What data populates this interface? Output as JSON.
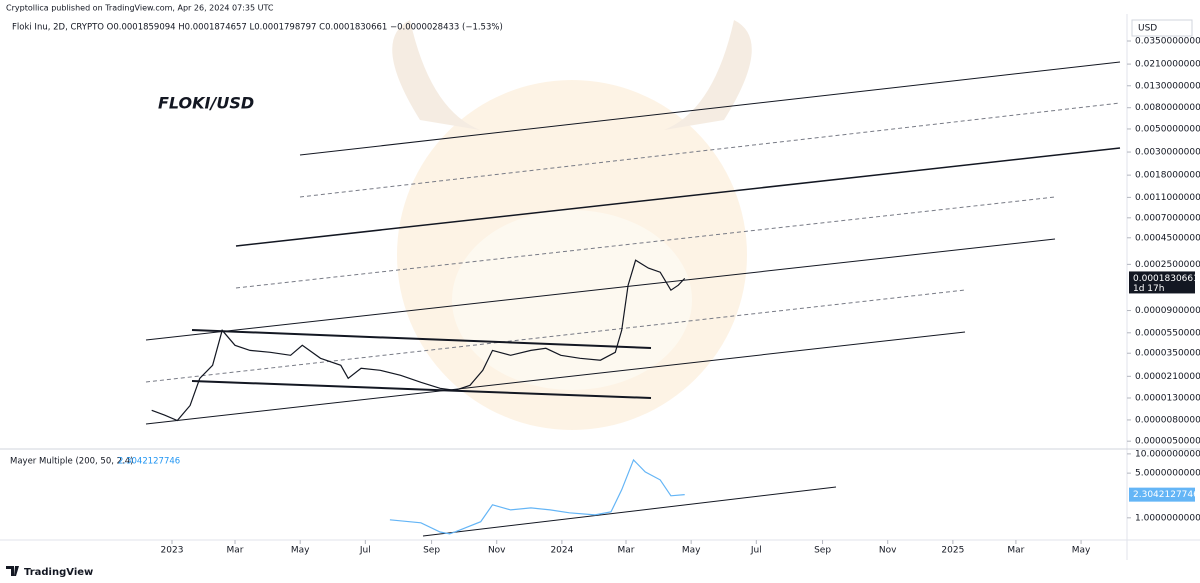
{
  "header": "Cryptollica published on TradingView.com, Apr 26, 2024 07:35 UTC",
  "footer": "TradingView",
  "chart_data": [
    {
      "type": "line",
      "title": "FLOKI/USD",
      "subtitle": "Floki Inu, 2D, CRYPTO  O0.0001859094  H0.0001874657  L0.0001798797  C0.0001830661  −0.0000028433 (−1.53%)",
      "currency": "USD",
      "countdown": "1d 17h",
      "log_scale": true,
      "grid": false,
      "xlim": [
        "2022-07-24",
        "2025-06-13"
      ],
      "ylim": [
        4.3e-06,
        0.0557
      ],
      "yticks": [
        {
          "value": 0.035,
          "label": "0.0350000000"
        },
        {
          "value": 0.021,
          "label": "0.0210000000"
        },
        {
          "value": 0.013,
          "label": "0.0130000000"
        },
        {
          "value": 0.008,
          "label": "0.0080000000"
        },
        {
          "value": 0.005,
          "label": "0.0050000000"
        },
        {
          "value": 0.003,
          "label": "0.0030000000"
        },
        {
          "value": 0.0018,
          "label": "0.0018000000"
        },
        {
          "value": 0.0011,
          "label": "0.0011000000"
        },
        {
          "value": 0.0007,
          "label": "0.0007000000"
        },
        {
          "value": 0.00045,
          "label": "0.0004500000"
        },
        {
          "value": 0.00025,
          "label": "0.0002500000"
        },
        {
          "value": 9e-05,
          "label": "0.0000900000"
        },
        {
          "value": 5.5e-05,
          "label": "0.0000550000"
        },
        {
          "value": 3.5e-05,
          "label": "0.0000350000"
        },
        {
          "value": 2.1e-05,
          "label": "0.0000210000"
        },
        {
          "value": 1.3e-05,
          "label": "0.0000130000"
        },
        {
          "value": 8e-06,
          "label": "0.0000080000"
        },
        {
          "value": 5e-06,
          "label": "0.0000050000"
        }
      ],
      "x": [
        "2022-12-13",
        "2022-12-25",
        "2023-01-06",
        "2023-01-18",
        "2023-01-27",
        "2023-02-08",
        "2023-02-17",
        "2023-03-01",
        "2023-03-15",
        "2023-04-03",
        "2023-04-22",
        "2023-05-03",
        "2023-05-20",
        "2023-06-08",
        "2023-06-15",
        "2023-06-27",
        "2023-07-15",
        "2023-08-03",
        "2023-08-22",
        "2023-09-09",
        "2023-09-23",
        "2023-10-07",
        "2023-10-19",
        "2023-10-28",
        "2023-11-14",
        "2023-12-03",
        "2023-12-17",
        "2023-12-31",
        "2024-01-18",
        "2024-02-06",
        "2024-02-20",
        "2024-02-26",
        "2024-03-03",
        "2024-03-10",
        "2024-03-22",
        "2024-04-02",
        "2024-04-12",
        "2024-04-19",
        "2024-04-25"
      ],
      "series": [
        {
          "color": "#131722",
          "values": [
            9.9e-06,
            8.9e-06,
            7.9e-06,
            1.1e-05,
            2.01e-05,
            2.68e-05,
            5.81e-05,
            4.17e-05,
            3.73e-05,
            3.57e-05,
            3.34e-05,
            4.17e-05,
            3.13e-05,
            2.68e-05,
            2.01e-05,
            2.51e-05,
            2.4e-05,
            2.15e-05,
            1.84e-05,
            1.61e-05,
            1.54e-05,
            1.72e-05,
            2.4e-05,
            3.73e-05,
            3.34e-05,
            3.73e-05,
            3.9e-05,
            3.34e-05,
            3.13e-05,
            3e-05,
            3.57e-05,
            5.81e-05,
            0.0001575,
            0.000274,
            0.00023,
            0.00021,
            0.000141,
            0.0001575,
            0.0001830661
          ]
        }
      ]
    },
    {
      "type": "line",
      "title": "Mayer Multiple (200, 50, 2.4)",
      "log_scale": true,
      "grid": false,
      "xlim": [
        "2022-07-24",
        "2025-06-13"
      ],
      "xticks": [
        {
          "value": "2023-01-01",
          "label": "2023"
        },
        {
          "value": "2023-03-01",
          "label": "Mar"
        },
        {
          "value": "2023-05-01",
          "label": "May"
        },
        {
          "value": "2023-07-01",
          "label": "Jul"
        },
        {
          "value": "2023-09-01",
          "label": "Sep"
        },
        {
          "value": "2023-11-01",
          "label": "Nov"
        },
        {
          "value": "2024-01-01",
          "label": "2024"
        },
        {
          "value": "2024-03-01",
          "label": "Mar"
        },
        {
          "value": "2024-05-01",
          "label": "May"
        },
        {
          "value": "2024-07-01",
          "label": "Jul"
        },
        {
          "value": "2024-09-01",
          "label": "Sep"
        },
        {
          "value": "2024-11-01",
          "label": "Nov"
        },
        {
          "value": "2025-01-01",
          "label": "2025"
        },
        {
          "value": "2025-03-01",
          "label": "Mar"
        },
        {
          "value": "2025-05-01",
          "label": "May"
        }
      ],
      "ylim": [
        0.45,
        11.5
      ],
      "yticks": [
        {
          "value": 10,
          "label": "10.0000000000"
        },
        {
          "value": 5,
          "label": "5.0000000000"
        },
        {
          "value": 1,
          "label": "1.0000000000"
        }
      ],
      "x": [
        "2023-07-24",
        "2023-08-22",
        "2023-09-09",
        "2023-09-18",
        "2023-09-28",
        "2023-10-17",
        "2023-10-28",
        "2023-11-14",
        "2023-12-03",
        "2023-12-21",
        "2024-01-08",
        "2024-02-01",
        "2024-02-16",
        "2024-02-26",
        "2024-03-08",
        "2024-03-19",
        "2024-04-02",
        "2024-04-12",
        "2024-04-25"
      ],
      "series": [
        {
          "color": "#64b5f6",
          "values": [
            0.93,
            0.835,
            0.6,
            0.56,
            0.65,
            0.87,
            1.6,
            1.33,
            1.43,
            1.33,
            1.2,
            1.11,
            1.24,
            2.74,
            8.06,
            5.23,
            3.92,
            2.21,
            2.3042127746
          ]
        }
      ]
    }
  ]
}
